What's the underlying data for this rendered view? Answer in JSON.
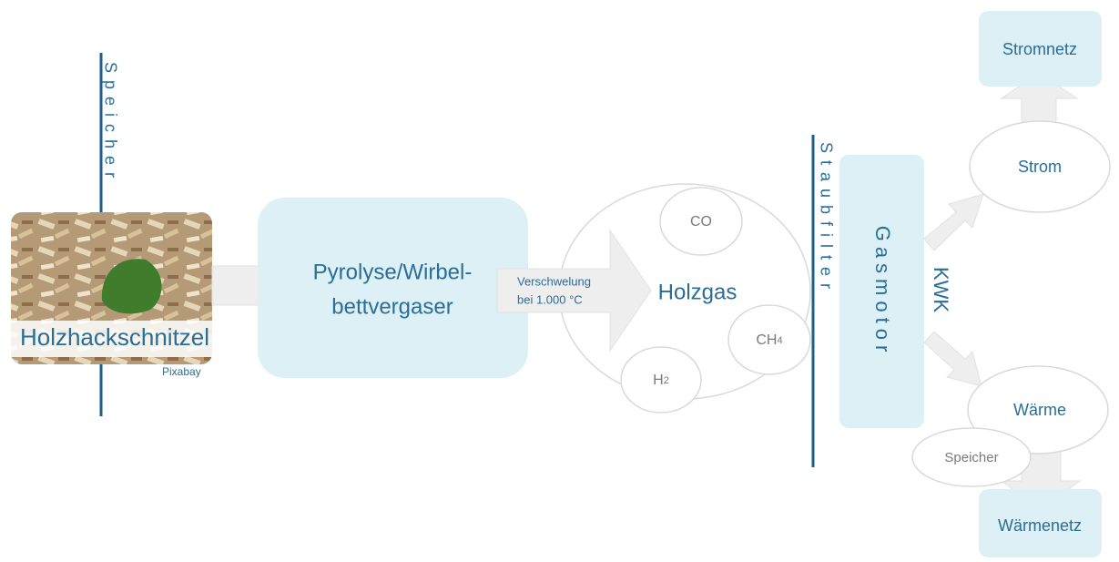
{
  "input": {
    "storage": "Speicher",
    "label": "Holzhackschnitzel",
    "credit": "Pixabay"
  },
  "reactor": {
    "line1": "Pyrolyse/Wirbel-",
    "line2": "bettvergaser"
  },
  "process": {
    "line1": "Verschwelung",
    "line2": "bei 1.000 °C"
  },
  "gas": {
    "label": "Holzgas",
    "components": {
      "co": "CO",
      "ch4": {
        "text": "CH",
        "sub": "4"
      },
      "h2": {
        "text": "H",
        "sub": "2"
      }
    }
  },
  "filter": "Staubfilter",
  "engine": {
    "label": "Gasmotor",
    "mode": "KWK"
  },
  "outputs": {
    "power": "Strom",
    "grid": "Stromnetz",
    "heat": "Wärme",
    "heat_storage": "Speicher",
    "heat_grid": "Wärmenetz"
  }
}
